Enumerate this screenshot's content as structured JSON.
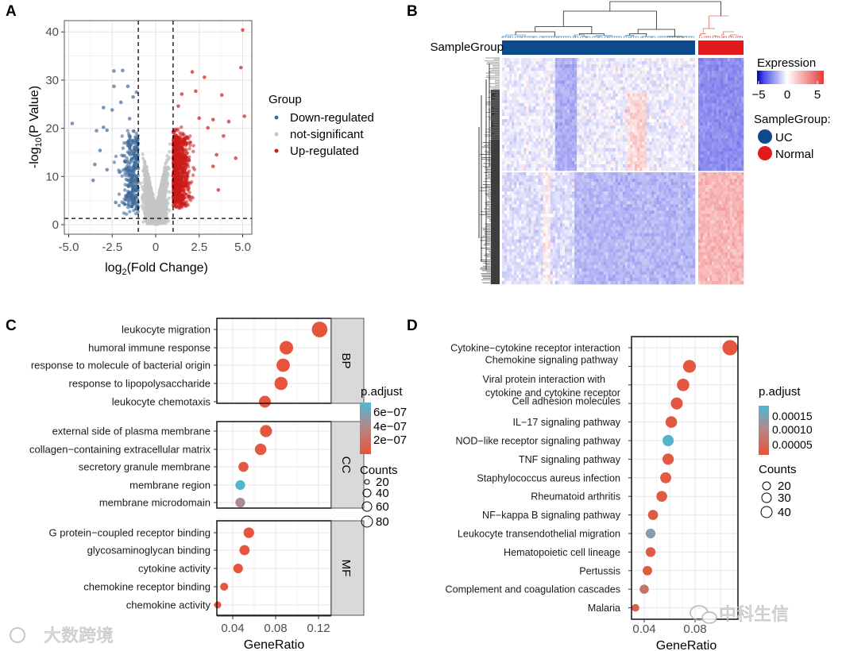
{
  "panels": {
    "a": "A",
    "b": "B",
    "c": "C",
    "d": "D"
  },
  "watermarks": {
    "left": "大数跨境",
    "right": "中科生信"
  },
  "chart_data": [
    {
      "type": "scatter",
      "title": "",
      "xlabel": {
        "pre": "log",
        "sub": "2",
        "post": "(Fold Change)"
      },
      "ylabel": {
        "pre": "-log",
        "sub": "10",
        "post": "(P Value)"
      },
      "xlim": [
        -5.2,
        5.3
      ],
      "ylim": [
        -2,
        43
      ],
      "xticks": [
        "-5.0",
        "-2.5",
        "0",
        "2.5",
        "5.0"
      ],
      "xtick_values": [
        -5,
        -2.5,
        0,
        2.5,
        5
      ],
      "yticks": [
        "0",
        "10",
        "20",
        "30",
        "40"
      ],
      "ytick_values": [
        0,
        10,
        20,
        30,
        40
      ],
      "thresholds": {
        "log2fc": 1,
        "neg_log10_p": 1.3
      },
      "grid": true,
      "legend": {
        "title": "Group",
        "position": "right",
        "entries": [
          {
            "label": "Down-regulated",
            "color": "#3e6a9a"
          },
          {
            "label": "not-significant",
            "color": "#c4c4c4"
          },
          {
            "label": "Up-regulated",
            "color": "#cc1c1c"
          }
        ]
      },
      "series": [
        {
          "name": "Down-regulated",
          "points": [
            [
              -4.8,
              21
            ],
            [
              -3.6,
              9.2
            ],
            [
              -3.5,
              12.5
            ],
            [
              -3.4,
              19.5
            ],
            [
              -3.2,
              15.4
            ],
            [
              -3.0,
              20.2
            ],
            [
              -3.0,
              24.3
            ],
            [
              -2.8,
              11.4
            ],
            [
              -2.8,
              19.6
            ],
            [
              -2.5,
              23.8
            ],
            [
              -2.4,
              28.7
            ],
            [
              -2.4,
              31.9
            ],
            [
              -2.3,
              4.6
            ],
            [
              -1.9,
              32
            ],
            [
              -1.6,
              28.7
            ],
            [
              -1.3,
              26.5
            ],
            [
              -1.1,
              27.5
            ],
            [
              -2.0,
              25.4
            ],
            [
              -1.5,
              22.0
            ]
          ]
        },
        {
          "name": "Up-regulated",
          "points": [
            [
              5.0,
              40.4
            ],
            [
              4.9,
              32.6
            ],
            [
              5.1,
              22.5
            ],
            [
              4.6,
              13.8
            ],
            [
              4.2,
              21.4
            ],
            [
              3.8,
              26.9
            ],
            [
              3.9,
              18.4
            ],
            [
              3.6,
              7.2
            ],
            [
              3.5,
              14.5
            ],
            [
              3.3,
              21.8
            ],
            [
              3.3,
              12.1
            ],
            [
              3.0,
              20.1
            ],
            [
              2.8,
              30.6
            ],
            [
              2.3,
              27.7
            ],
            [
              2.1,
              31.7
            ],
            [
              2.5,
              22.1
            ],
            [
              1.5,
              27.1
            ],
            [
              1.3,
              24.6
            ]
          ]
        }
      ]
    },
    {
      "type": "heatmap",
      "legend": {
        "title": "Expression",
        "ticks": [
          "−5",
          "0",
          "5"
        ],
        "range": [
          -5,
          6
        ]
      },
      "annotation": {
        "label": "SampleGroup",
        "legend_title": "SampleGroup:",
        "groups": [
          {
            "name": "UC",
            "color": "#0d4a8c"
          },
          {
            "name": "Normal",
            "color": "#e31a1c"
          }
        ]
      },
      "summary": {
        "upper_gene_cluster": {
          "UC": -0.2,
          "Normal": -2.2
        },
        "lower_gene_cluster": {
          "UC": -1.0,
          "Normal": 1.3
        }
      }
    },
    {
      "type": "scatter",
      "xlabel": "GeneRatio",
      "xticks": [
        "0.04",
        "0.08",
        "0.12"
      ],
      "xtick_values": [
        0.04,
        0.08,
        0.12
      ],
      "xlim": [
        0.02,
        0.128
      ],
      "color_legend": {
        "title": "p.adjust",
        "ticks": [
          "6e−07",
          "4e−07",
          "2e−07"
        ],
        "tick_values": [
          6e-07,
          4e-07,
          2e-07
        ],
        "range": [
          0,
          7e-07
        ],
        "low": "#e8533a",
        "high": "#4cb8d4"
      },
      "size_legend": {
        "title": "Counts",
        "values": [
          "20",
          "40",
          "60",
          "80"
        ]
      },
      "facets": [
        {
          "name": "BP",
          "terms": [
            {
              "label": "leukocyte migration",
              "gene_ratio": 0.121,
              "count": 88,
              "p_adjust": 1e-08
            },
            {
              "label": "humoral immune response",
              "gene_ratio": 0.09,
              "count": 66,
              "p_adjust": 1e-08
            },
            {
              "label": "response to molecule of bacterial origin",
              "gene_ratio": 0.087,
              "count": 64,
              "p_adjust": 1e-08
            },
            {
              "label": "response to lipopolysaccharide",
              "gene_ratio": 0.085,
              "count": 62,
              "p_adjust": 1e-08
            },
            {
              "label": "leukocyte chemotaxis",
              "gene_ratio": 0.07,
              "count": 51,
              "p_adjust": 1e-08
            }
          ]
        },
        {
          "name": "CC",
          "terms": [
            {
              "label": "external side of plasma membrane",
              "gene_ratio": 0.071,
              "count": 52,
              "p_adjust": 2e-08
            },
            {
              "label": "collagen−containing extracellular matrix",
              "gene_ratio": 0.066,
              "count": 48,
              "p_adjust": 5e-08
            },
            {
              "label": "secretory granule membrane",
              "gene_ratio": 0.05,
              "count": 36,
              "p_adjust": 3e-08
            },
            {
              "label": "membrane region",
              "gene_ratio": 0.047,
              "count": 34,
              "p_adjust": 6.8e-07
            },
            {
              "label": "membrane microdomain",
              "gene_ratio": 0.047,
              "count": 34,
              "p_adjust": 4e-07
            }
          ]
        },
        {
          "name": "MF",
          "terms": [
            {
              "label": "G protein−coupled receptor binding",
              "gene_ratio": 0.055,
              "count": 40,
              "p_adjust": 1e-08
            },
            {
              "label": "glycosaminoglycan binding",
              "gene_ratio": 0.051,
              "count": 37,
              "p_adjust": 1e-08
            },
            {
              "label": "cytokine activity",
              "gene_ratio": 0.045,
              "count": 33,
              "p_adjust": 1e-08
            },
            {
              "label": "chemokine receptor binding",
              "gene_ratio": 0.032,
              "count": 23,
              "p_adjust": 1e-08
            },
            {
              "label": "chemokine activity",
              "gene_ratio": 0.026,
              "count": 18,
              "p_adjust": 1e-08
            }
          ]
        }
      ]
    },
    {
      "type": "scatter",
      "xlabel": "GeneRatio",
      "xticks": [
        "0.04",
        "0.08"
      ],
      "xtick_values": [
        0.04,
        0.08
      ],
      "xlim": [
        0.03,
        0.112
      ],
      "color_legend": {
        "title": "p.adjust",
        "ticks": [
          "0.00015",
          "0.00010",
          "0.00005"
        ],
        "tick_values": [
          0.00015,
          0.0001,
          5e-05
        ],
        "range": [
          0,
          0.00018
        ],
        "low": "#e8533a",
        "high": "#4cb8d4"
      },
      "size_legend": {
        "title": "Counts",
        "values": [
          "20",
          "30",
          "40"
        ]
      },
      "terms": [
        {
          "label": "Cytokine−cytokine receptor interaction",
          "gene_ratio": 0.1075,
          "count": 44,
          "p_adjust": 5e-06
        },
        {
          "label": "Chemokine signaling pathway",
          "gene_ratio": 0.0756,
          "count": 31,
          "p_adjust": 5e-06
        },
        {
          "label": "Viral protein interaction with",
          "label2": "cytokine and cytokine receptor",
          "gene_ratio": 0.0706,
          "count": 29,
          "p_adjust": 5e-06
        },
        {
          "label": "Cell adhesion molecules",
          "gene_ratio": 0.0656,
          "count": 27,
          "p_adjust": 8e-06
        },
        {
          "label": "IL−17 signaling pathway",
          "gene_ratio": 0.0613,
          "count": 25,
          "p_adjust": 8e-06
        },
        {
          "label": "NOD−like receptor signaling pathway",
          "gene_ratio": 0.0588,
          "count": 24,
          "p_adjust": 0.000172
        },
        {
          "label": "TNF signaling pathway",
          "gene_ratio": 0.0588,
          "count": 24,
          "p_adjust": 1.2e-05
        },
        {
          "label": "Staphylococcus aureus infection",
          "gene_ratio": 0.0569,
          "count": 23,
          "p_adjust": 1.2e-05
        },
        {
          "label": "Rheumatoid arthritis",
          "gene_ratio": 0.0538,
          "count": 22,
          "p_adjust": 1.2e-05
        },
        {
          "label": "NF−kappa B signaling pathway",
          "gene_ratio": 0.0469,
          "count": 19,
          "p_adjust": 1.5e-05
        },
        {
          "label": "Leukocyte transendothelial migration",
          "gene_ratio": 0.045,
          "count": 18,
          "p_adjust": 0.000135
        },
        {
          "label": "Hematopoietic cell lineage",
          "gene_ratio": 0.045,
          "count": 18,
          "p_adjust": 1.5e-05
        },
        {
          "label": "Pertussis",
          "gene_ratio": 0.0425,
          "count": 17,
          "p_adjust": 1.5e-05
        },
        {
          "label": "Complement and coagulation cascades",
          "gene_ratio": 0.04,
          "count": 16,
          "p_adjust": 6e-05
        },
        {
          "label": "Malaria",
          "gene_ratio": 0.0331,
          "count": 11,
          "p_adjust": 2e-05
        }
      ]
    }
  ]
}
